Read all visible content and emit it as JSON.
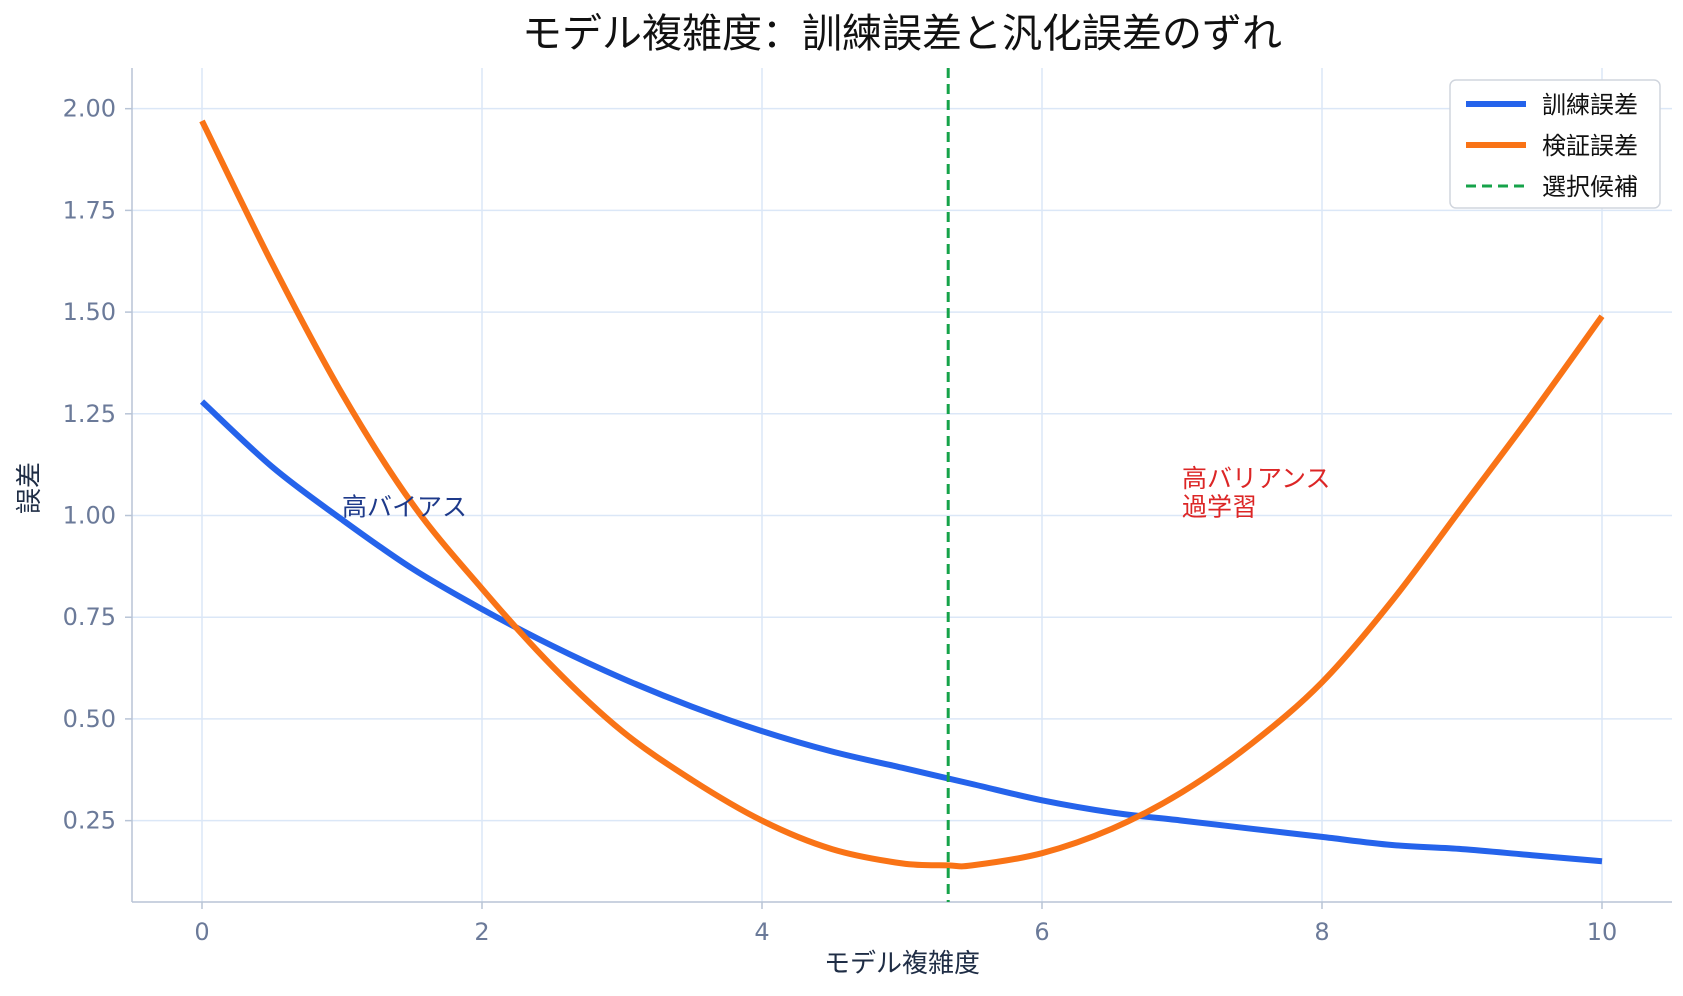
{
  "chart_data": {
    "type": "line",
    "title": "モデル複雑度：訓練誤差と汎化誤差のずれ",
    "xlabel": "モデル複雑度",
    "ylabel": "誤差",
    "xlim": [
      -0.5,
      10.5
    ],
    "ylim": [
      0.05,
      2.1
    ],
    "xticks": [
      0,
      2,
      4,
      6,
      8,
      10
    ],
    "yticks": [
      0.25,
      0.5,
      0.75,
      1.0,
      1.25,
      1.5,
      1.75,
      2.0
    ],
    "ytick_labels": [
      "0.25",
      "0.50",
      "0.75",
      "1.00",
      "1.25",
      "1.50",
      "1.75",
      "2.00"
    ],
    "grid": true,
    "legend_position": "top-right",
    "series": [
      {
        "name": "訓練誤差",
        "color": "#2563eb",
        "style": "solid",
        "x": [
          0,
          0.5,
          1,
          1.5,
          2,
          2.5,
          3,
          3.5,
          4,
          4.5,
          5,
          5.5,
          6,
          6.5,
          7,
          7.5,
          8,
          8.5,
          9,
          9.5,
          10
        ],
        "y": [
          1.28,
          1.12,
          0.99,
          0.87,
          0.77,
          0.68,
          0.6,
          0.53,
          0.47,
          0.42,
          0.38,
          0.34,
          0.3,
          0.27,
          0.25,
          0.23,
          0.21,
          0.19,
          0.18,
          0.165,
          0.15
        ]
      },
      {
        "name": "検証誤差",
        "color": "#f97316",
        "style": "solid",
        "x": [
          0,
          0.5,
          1,
          1.5,
          2,
          2.5,
          3,
          3.5,
          4,
          4.5,
          5,
          5.33,
          5.5,
          6,
          6.5,
          7,
          7.5,
          8,
          8.5,
          9,
          9.5,
          10
        ],
        "y": [
          1.97,
          1.62,
          1.3,
          1.03,
          0.82,
          0.63,
          0.47,
          0.35,
          0.25,
          0.18,
          0.145,
          0.14,
          0.14,
          0.17,
          0.23,
          0.32,
          0.44,
          0.59,
          0.79,
          1.02,
          1.25,
          1.49
        ]
      },
      {
        "name": "選択候補",
        "color": "#16a34a",
        "style": "dashed",
        "vline_x": 5.33
      }
    ],
    "annotations": [
      {
        "text": "高バイアス",
        "x": 1.0,
        "y": 1.0,
        "color": "#1e3a8a"
      },
      {
        "text": "高バリアンス",
        "x": 7.0,
        "y": 1.07,
        "color": "#dc2626"
      },
      {
        "text": "過学習",
        "x": 7.0,
        "y": 1.0,
        "color": "#dc2626"
      }
    ]
  }
}
